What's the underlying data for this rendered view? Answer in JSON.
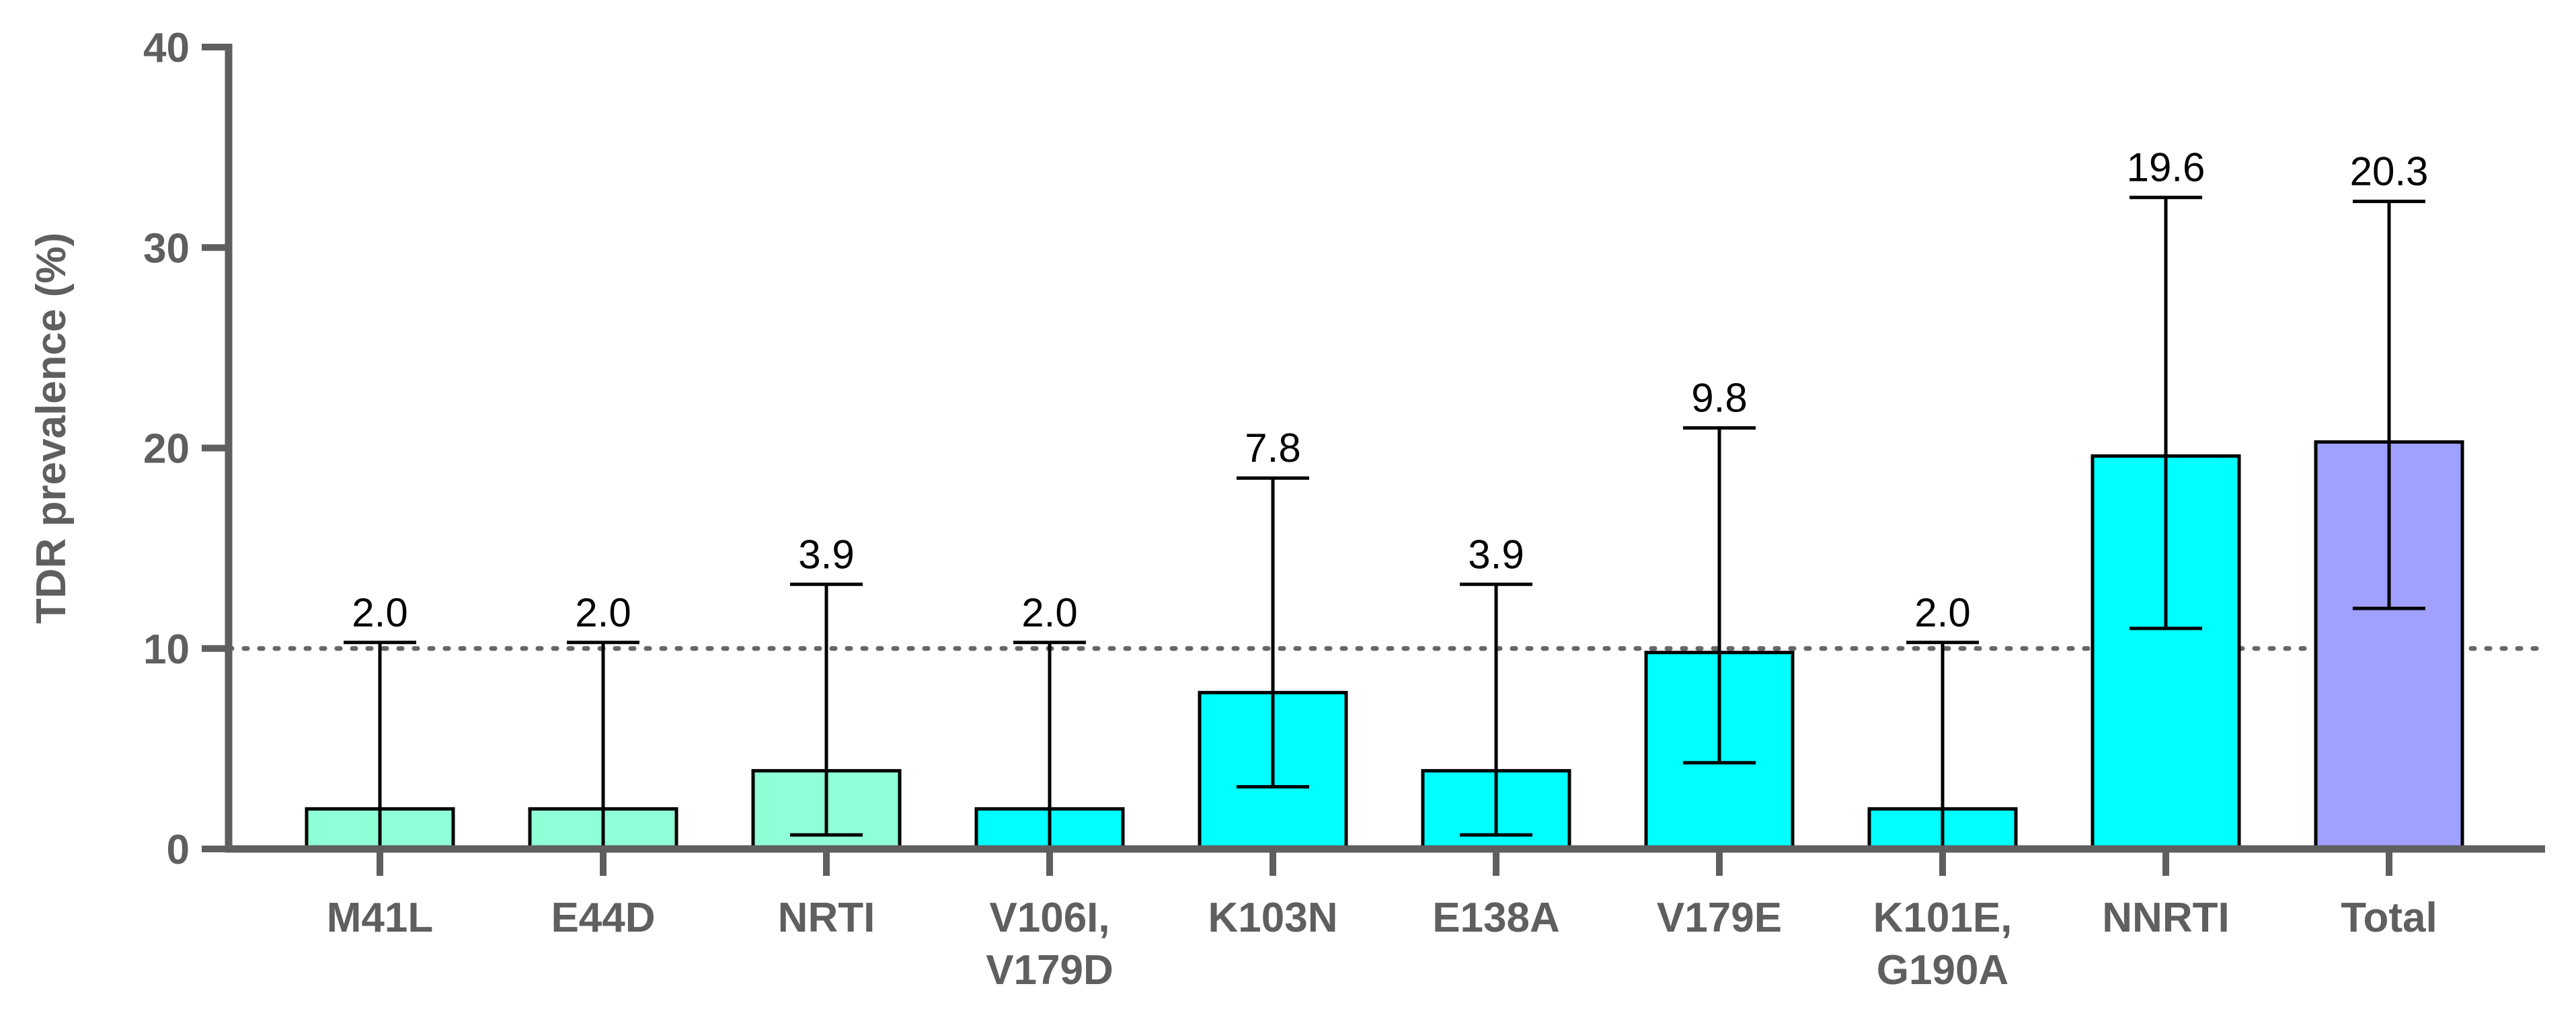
{
  "chart_data": {
    "type": "bar",
    "title": "",
    "xlabel": "",
    "ylabel": "TDR prevalence (%)",
    "ylim": [
      0,
      40
    ],
    "yticks": [
      "0",
      "10",
      "20",
      "30",
      "40"
    ],
    "grid": false,
    "reference_line": {
      "y": 10,
      "style": "dotted"
    },
    "categories": [
      [
        "M41L"
      ],
      [
        "E44D"
      ],
      [
        "NRTI"
      ],
      [
        "V106I,",
        "V179D"
      ],
      [
        "K103N"
      ],
      [
        "E138A"
      ],
      [
        "V179E"
      ],
      [
        "K101E,",
        "G190A"
      ],
      [
        "NNRTI"
      ],
      [
        "Total"
      ]
    ],
    "values": [
      2.0,
      2.0,
      3.9,
      2.0,
      7.8,
      3.9,
      9.8,
      2.0,
      19.6,
      20.3
    ],
    "value_labels": [
      "2.0",
      "2.0",
      "3.9",
      "2.0",
      "7.8",
      "3.9",
      "9.8",
      "2.0",
      "19.6",
      "20.3"
    ],
    "error_low": [
      0.1,
      0.1,
      0.7,
      0.1,
      3.1,
      0.7,
      4.3,
      0.1,
      11.0,
      12.0
    ],
    "error_high": [
      10.3,
      10.3,
      13.2,
      10.3,
      18.5,
      13.2,
      21.0,
      10.3,
      32.5,
      32.3
    ],
    "groups": [
      "NRTI",
      "NRTI",
      "NRTI",
      "NNRTI",
      "NNRTI",
      "NNRTI",
      "NNRTI",
      "NNRTI",
      "NNRTI",
      "Total"
    ],
    "colors": {
      "NRTI": "#8fffd8",
      "NNRTI": "#00ffff",
      "Total": "#a0a0ff",
      "axis": "#5f5f5f",
      "edge": "#000000"
    }
  }
}
